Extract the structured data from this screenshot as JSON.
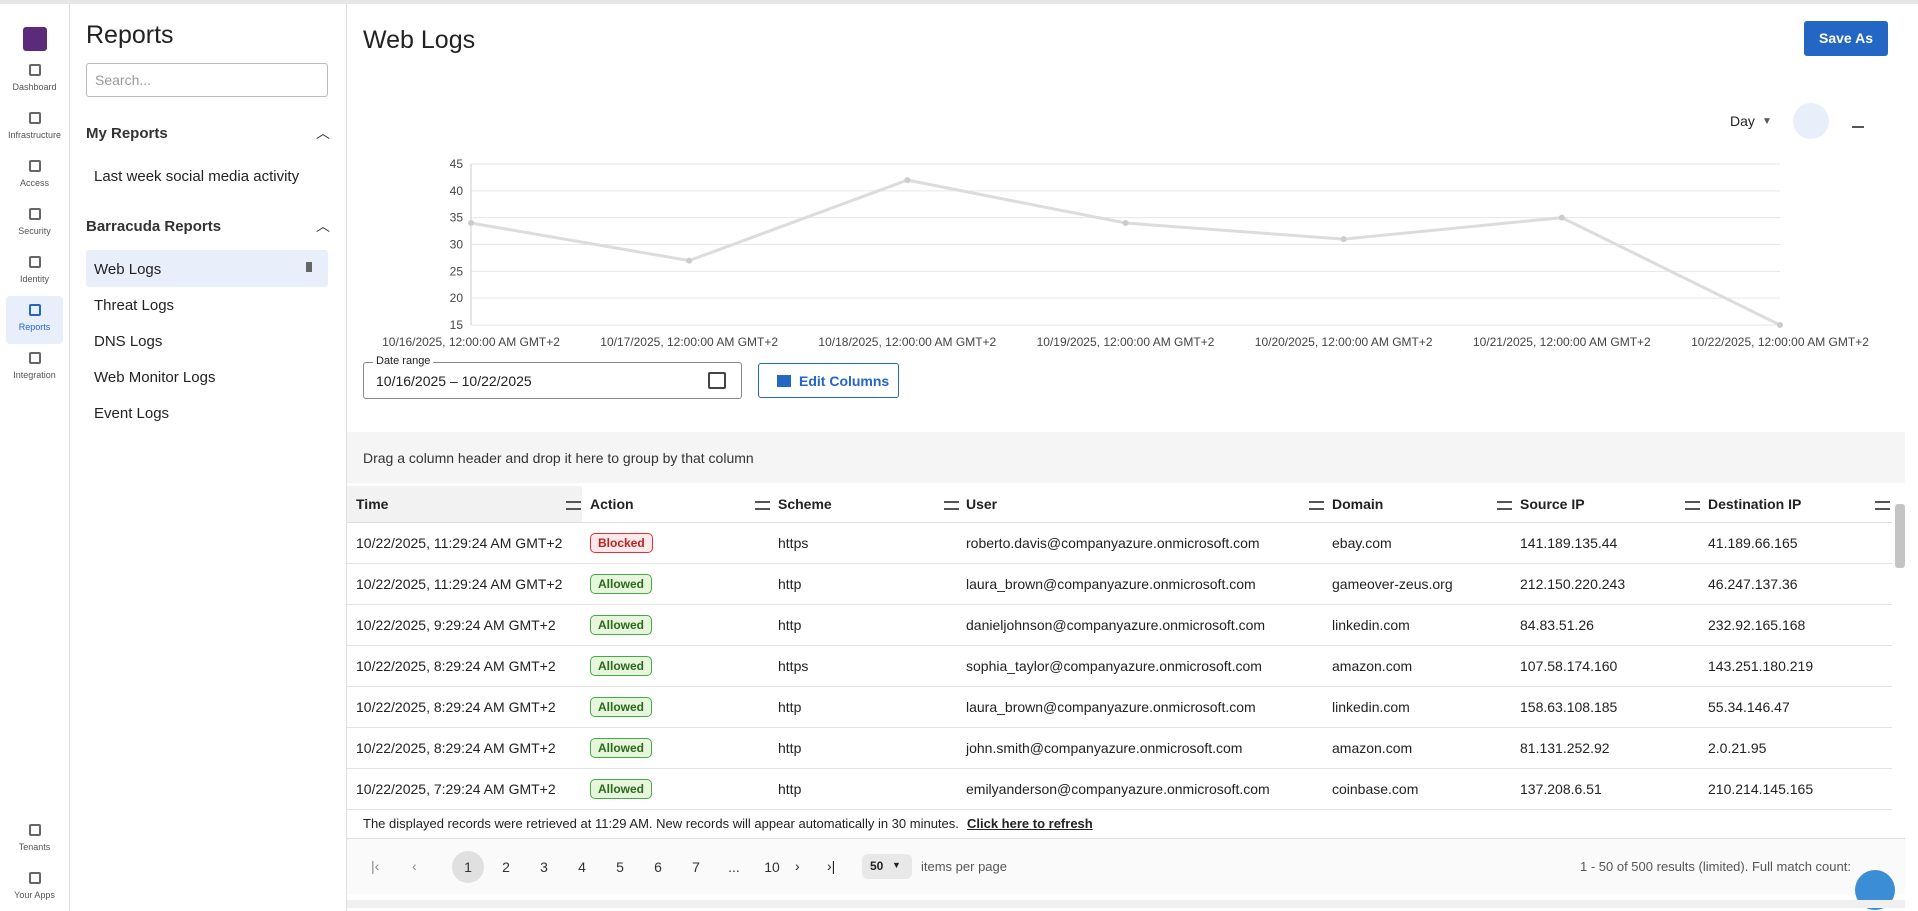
{
  "nav": {
    "items": [
      "Dashboard",
      "Infrastructure",
      "Access",
      "Security",
      "Identity",
      "Reports",
      "Integration"
    ],
    "bottom_items": [
      "Tenants",
      "Your Apps"
    ]
  },
  "sidebar": {
    "title": "Reports",
    "search_placeholder": "Search...",
    "sections": [
      {
        "title": "My Reports",
        "items": [
          "Last week social media activity"
        ]
      },
      {
        "title": "Barracuda Reports",
        "items": [
          "Web Logs",
          "Threat Logs",
          "DNS Logs",
          "Web Monitor Logs",
          "Event Logs"
        ]
      }
    ]
  },
  "header": {
    "title": "Web Logs",
    "save_button": "Save As"
  },
  "chart_data": {
    "type": "line",
    "granularity": "Day",
    "categories": [
      "10/16/2025, 12:00:00 AM GMT+2",
      "10/17/2025, 12:00:00 AM GMT+2",
      "10/18/2025, 12:00:00 AM GMT+2",
      "10/19/2025, 12:00:00 AM GMT+2",
      "10/20/2025, 12:00:00 AM GMT+2",
      "10/21/2025, 12:00:00 AM GMT+2",
      "10/22/2025, 12:00:00 AM GMT+2"
    ],
    "values": [
      34,
      27,
      42,
      34,
      31,
      35,
      15
    ],
    "color": "#dcdcdc",
    "ylim": [
      15,
      45
    ],
    "yticks": [
      15,
      20,
      25,
      30,
      35,
      40,
      45
    ],
    "grid": true
  },
  "date_range": {
    "label": "Date range",
    "value": "10/16/2025 – 10/22/2025"
  },
  "edit_columns_button": "Edit Columns",
  "grid": {
    "group_hint": "Drag a column header and drop it here to group by that column",
    "columns": [
      "Time",
      "Action",
      "Scheme",
      "User",
      "Domain",
      "Source IP",
      "Destination IP"
    ],
    "rows": [
      [
        "10/22/2025, 11:29:24 AM GMT+2",
        "Blocked",
        "https",
        "roberto.davis@companyazure.onmicrosoft.com",
        "ebay.com",
        "141.189.135.44",
        "41.189.66.165"
      ],
      [
        "10/22/2025, 11:29:24 AM GMT+2",
        "Allowed",
        "http",
        "laura_brown@companyazure.onmicrosoft.com",
        "gameover-zeus.org",
        "212.150.220.243",
        "46.247.137.36"
      ],
      [
        "10/22/2025, 9:29:24 AM GMT+2",
        "Allowed",
        "http",
        "danieljohnson@companyazure.onmicrosoft.com",
        "linkedin.com",
        "84.83.51.26",
        "232.92.165.168"
      ],
      [
        "10/22/2025, 8:29:24 AM GMT+2",
        "Allowed",
        "https",
        "sophia_taylor@companyazure.onmicrosoft.com",
        "amazon.com",
        "107.58.174.160",
        "143.251.180.219"
      ],
      [
        "10/22/2025, 8:29:24 AM GMT+2",
        "Allowed",
        "http",
        "laura_brown@companyazure.onmicrosoft.com",
        "linkedin.com",
        "158.63.108.185",
        "55.34.146.47"
      ],
      [
        "10/22/2025, 8:29:24 AM GMT+2",
        "Allowed",
        "http",
        "john.smith@companyazure.onmicrosoft.com",
        "amazon.com",
        "81.131.252.92",
        "2.0.21.95"
      ],
      [
        "10/22/2025, 7:29:24 AM GMT+2",
        "Allowed",
        "http",
        "emilyanderson@companyazure.onmicrosoft.com",
        "coinbase.com",
        "137.208.6.51",
        "210.214.145.165"
      ]
    ]
  },
  "footer": {
    "note": "The displayed records were retrieved at 11:29 AM. New records will appear automatically in 30 minutes.",
    "refresh_link": "Click here to refresh"
  },
  "pagination": {
    "pages": [
      "1",
      "2",
      "3",
      "4",
      "5",
      "6",
      "7",
      "...",
      "10"
    ],
    "page_size": "50",
    "page_size_label": "items per page",
    "summary": "1 - 50 of 500 results (limited). Full match count:"
  }
}
